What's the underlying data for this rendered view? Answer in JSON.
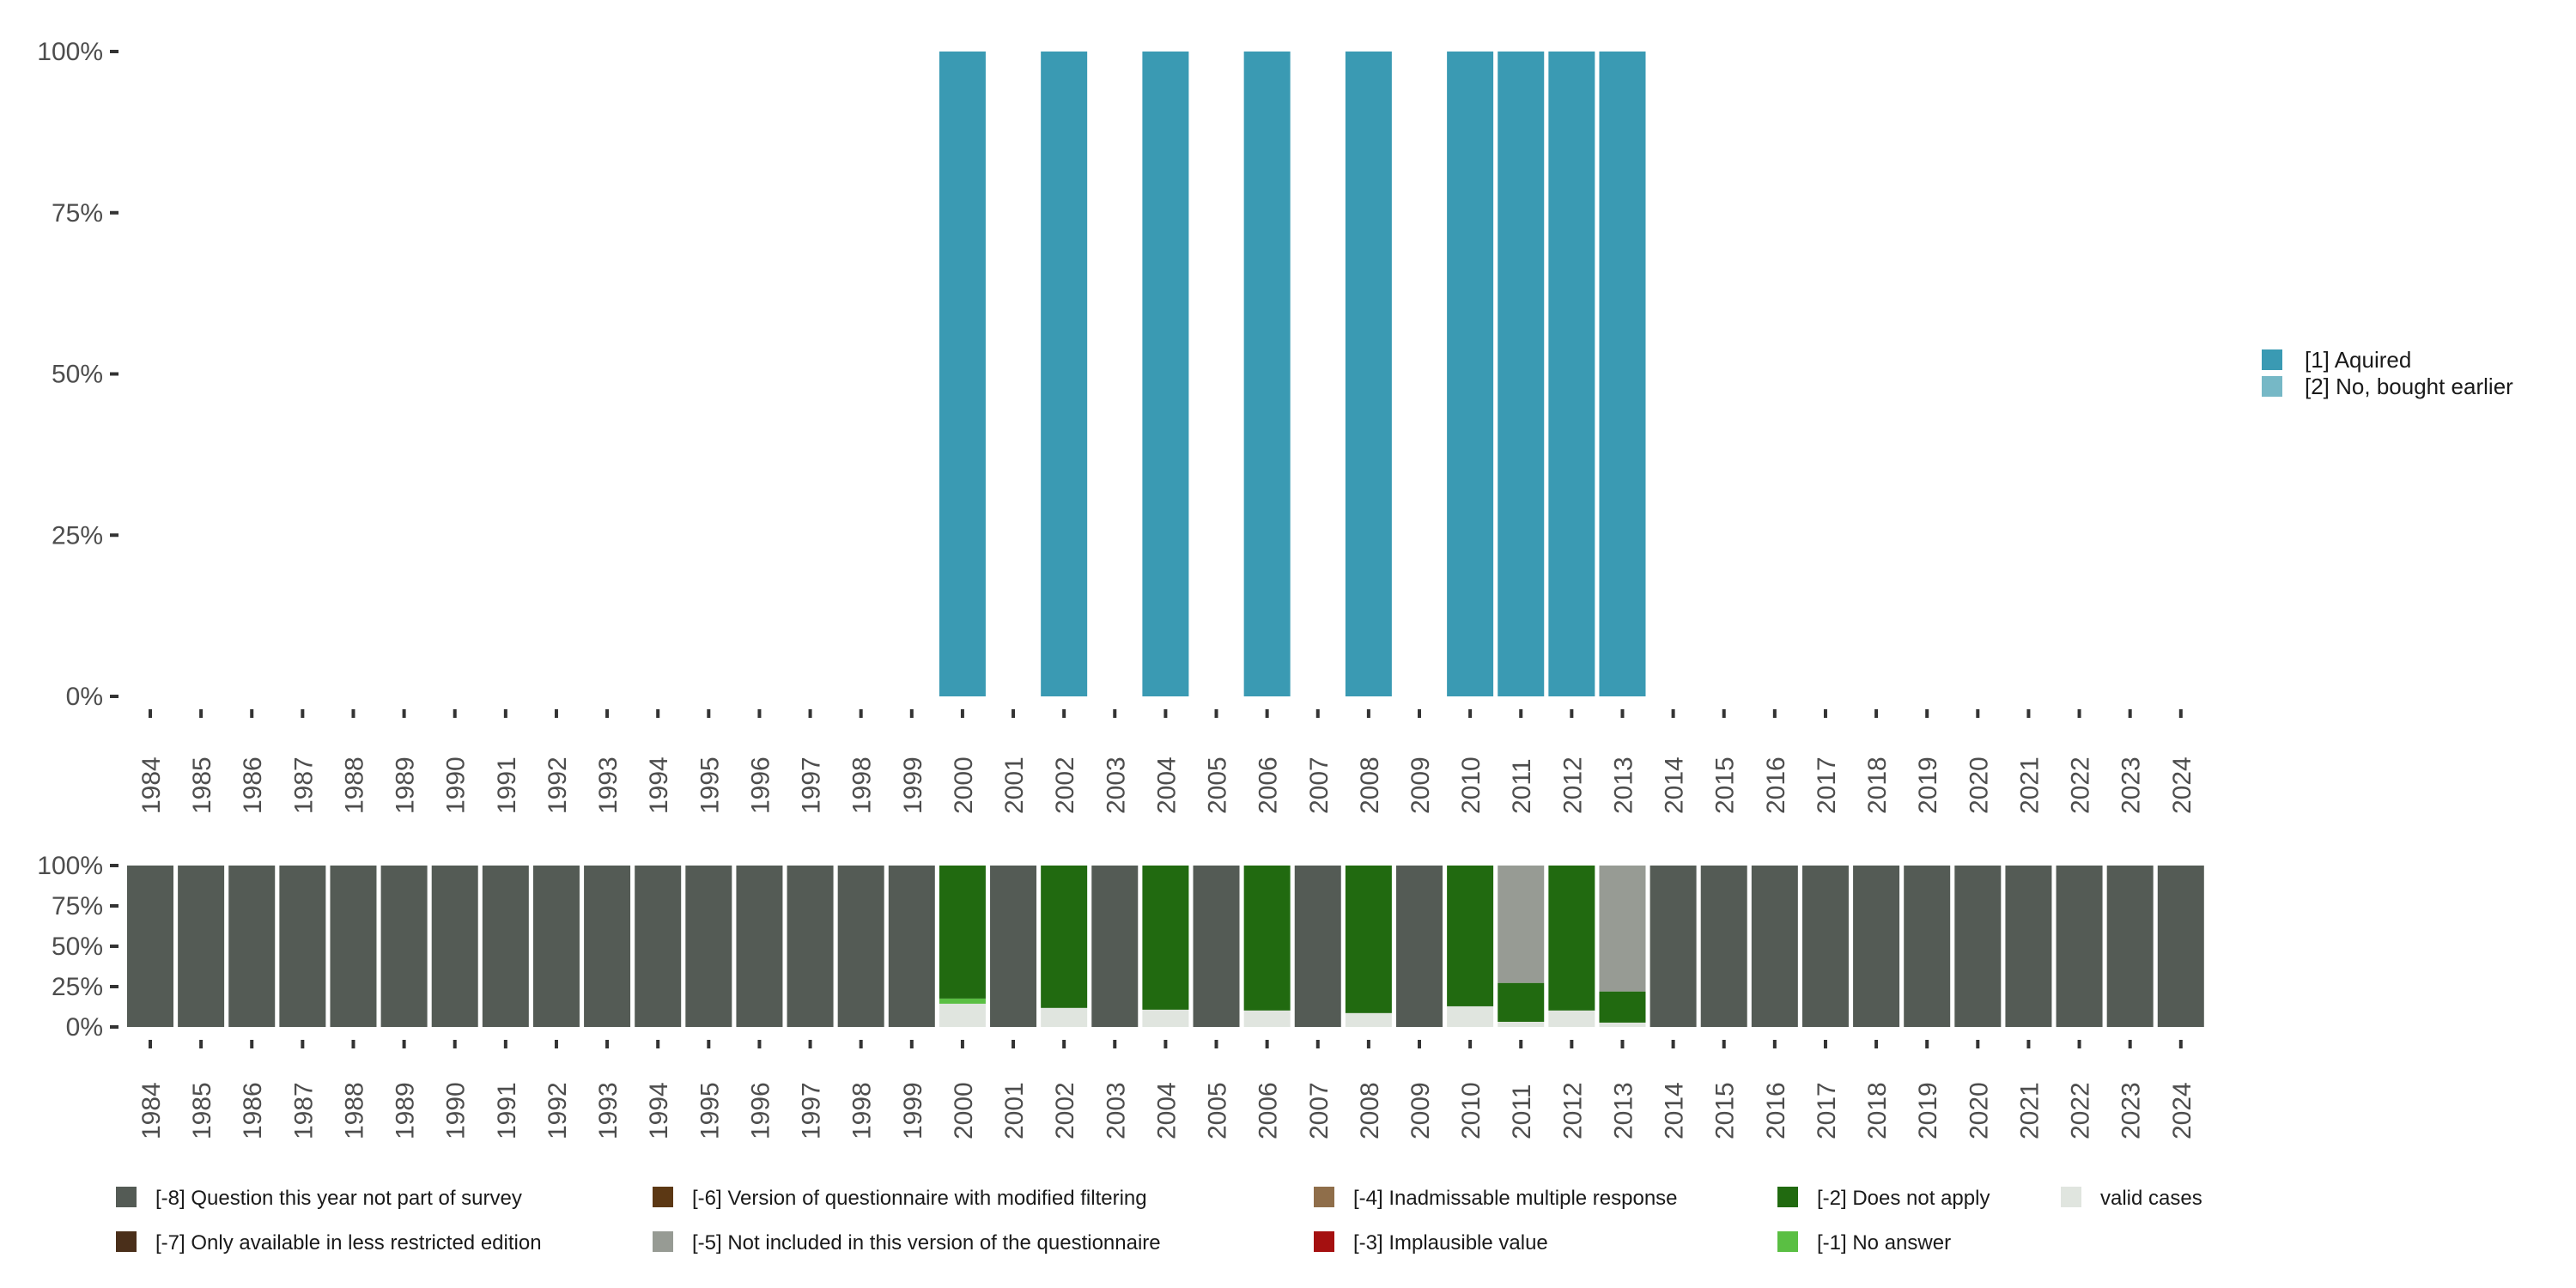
{
  "chart_data": [
    {
      "type": "bar",
      "title": "",
      "xlabel": "",
      "ylabel": "",
      "ylim": [
        0,
        100
      ],
      "y_ticks": [
        "0%",
        "25%",
        "50%",
        "75%",
        "100%"
      ],
      "categories": [
        "1984",
        "1985",
        "1986",
        "1987",
        "1988",
        "1989",
        "1990",
        "1991",
        "1992",
        "1993",
        "1994",
        "1995",
        "1996",
        "1997",
        "1998",
        "1999",
        "2000",
        "2001",
        "2002",
        "2003",
        "2004",
        "2005",
        "2006",
        "2007",
        "2008",
        "2009",
        "2010",
        "2011",
        "2012",
        "2013",
        "2014",
        "2015",
        "2016",
        "2017",
        "2018",
        "2019",
        "2020",
        "2021",
        "2022",
        "2023",
        "2024"
      ],
      "stacked": true,
      "series": [
        {
          "name": "[1] Aquired",
          "color": "#3a9ab3",
          "values": {
            "2000": 100,
            "2002": 100,
            "2004": 100,
            "2006": 100,
            "2008": 100,
            "2010": 100,
            "2011": 100,
            "2012": 100,
            "2013": 100
          }
        },
        {
          "name": "[2] No, bought earlier",
          "color": "#76b8c6",
          "values": {}
        }
      ],
      "legend_position": "right"
    },
    {
      "type": "bar",
      "stacked": true,
      "ylim": [
        0,
        100
      ],
      "y_ticks": [
        "0%",
        "25%",
        "50%",
        "75%",
        "100%"
      ],
      "categories": [
        "1984",
        "1985",
        "1986",
        "1987",
        "1988",
        "1989",
        "1990",
        "1991",
        "1992",
        "1993",
        "1994",
        "1995",
        "1996",
        "1997",
        "1998",
        "1999",
        "2000",
        "2001",
        "2002",
        "2003",
        "2004",
        "2005",
        "2006",
        "2007",
        "2008",
        "2009",
        "2010",
        "2011",
        "2012",
        "2013",
        "2014",
        "2015",
        "2016",
        "2017",
        "2018",
        "2019",
        "2020",
        "2021",
        "2022",
        "2023",
        "2024"
      ],
      "series": [
        {
          "name": "valid cases",
          "color": "#e0e5df",
          "values": {
            "2000": 14.4,
            "2002": 11.8,
            "2004": 10.7,
            "2006": 10.2,
            "2008": 8.6,
            "2010": 12.8,
            "2011": 3.2,
            "2012": 10.2,
            "2013": 2.7
          }
        },
        {
          "name": "[-1] No answer",
          "color": "#5abf43",
          "values": {
            "2000": 3.2
          }
        },
        {
          "name": "[-2] Does not apply",
          "color": "#216a10",
          "values": {
            "2000": 82.4,
            "2002": 88.2,
            "2004": 89.3,
            "2006": 89.8,
            "2008": 91.4,
            "2010": 87.2,
            "2011": 24.1,
            "2012": 89.8,
            "2013": 19.3
          }
        },
        {
          "name": "[-3] Implausible value",
          "color": "#a51010",
          "values": {}
        },
        {
          "name": "[-4] Inadmissable multiple response",
          "color": "#8f6e4a",
          "values": {}
        },
        {
          "name": "[-5] Not included in this version of the questionnaire",
          "color": "#979b94",
          "values": {
            "2011": 72.7,
            "2013": 78.0
          }
        },
        {
          "name": "[-6] Version of questionnaire with modified filtering",
          "color": "#5c3814",
          "values": {}
        },
        {
          "name": "[-7] Only available in less restricted edition",
          "color": "#4a2f1a",
          "values": {}
        },
        {
          "name": "[-8] Question this year not part of survey",
          "color": "#545b55",
          "values": "remainder"
        }
      ],
      "legend_position": "bottom",
      "legend_order": [
        "[-8] Question this year not part of survey",
        "[-7] Only available in less restricted edition",
        "[-6] Version of questionnaire with modified filtering",
        "[-5] Not included in this version of the questionnaire",
        "[-4] Inadmissable multiple response",
        "[-3] Implausible value",
        "[-2] Does not apply",
        "[-1] No answer",
        "valid cases"
      ]
    }
  ]
}
